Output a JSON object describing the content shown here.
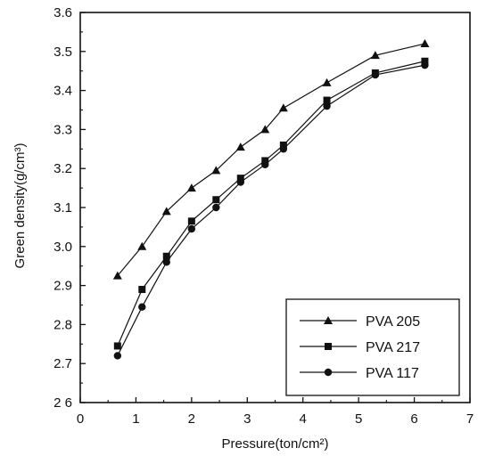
{
  "chart_data": {
    "type": "line",
    "xlabel": "Pressure(ton/cm²)",
    "ylabel": "Green density(g/cm³)",
    "xlim": [
      0,
      7
    ],
    "ylim": [
      2.6,
      3.6
    ],
    "x_ticks": [
      0,
      1,
      2,
      3,
      4,
      5,
      6,
      7
    ],
    "x_tick_labels": [
      "0",
      "1",
      "2",
      "3",
      "4",
      "5",
      "6",
      "7"
    ],
    "y_ticks": [
      2.6,
      2.7,
      2.8,
      2.9,
      3.0,
      3.1,
      3.2,
      3.3,
      3.4,
      3.5,
      3.6
    ],
    "y_tick_labels": [
      "2 6",
      "2.7",
      "2.8",
      "2.9",
      "3.0",
      "3.1",
      "3.2",
      "3.3",
      "3.4",
      "3.5",
      "3.6"
    ],
    "grid": false,
    "legend_position": "bottom-right",
    "series": [
      {
        "name": "PVA 205",
        "marker": "triangle",
        "x": [
          0.67,
          1.11,
          1.55,
          2.0,
          2.44,
          2.88,
          3.32,
          3.65,
          4.43,
          5.3,
          6.19
        ],
        "y": [
          2.925,
          3.0,
          3.09,
          3.15,
          3.195,
          3.255,
          3.3,
          3.355,
          3.42,
          3.49,
          3.52
        ]
      },
      {
        "name": "PVA 217",
        "marker": "square",
        "x": [
          0.67,
          1.11,
          1.55,
          2.0,
          2.44,
          2.88,
          3.32,
          3.65,
          4.43,
          5.3,
          6.19
        ],
        "y": [
          2.745,
          2.89,
          2.975,
          3.065,
          3.12,
          3.175,
          3.22,
          3.26,
          3.375,
          3.445,
          3.475
        ]
      },
      {
        "name": "PVA 117",
        "marker": "circle",
        "x": [
          0.67,
          1.11,
          1.55,
          2.0,
          2.44,
          2.88,
          3.32,
          3.65,
          4.43,
          5.3,
          6.19
        ],
        "y": [
          2.72,
          2.845,
          2.96,
          3.045,
          3.1,
          3.165,
          3.21,
          3.25,
          3.36,
          3.44,
          3.465
        ]
      }
    ]
  }
}
